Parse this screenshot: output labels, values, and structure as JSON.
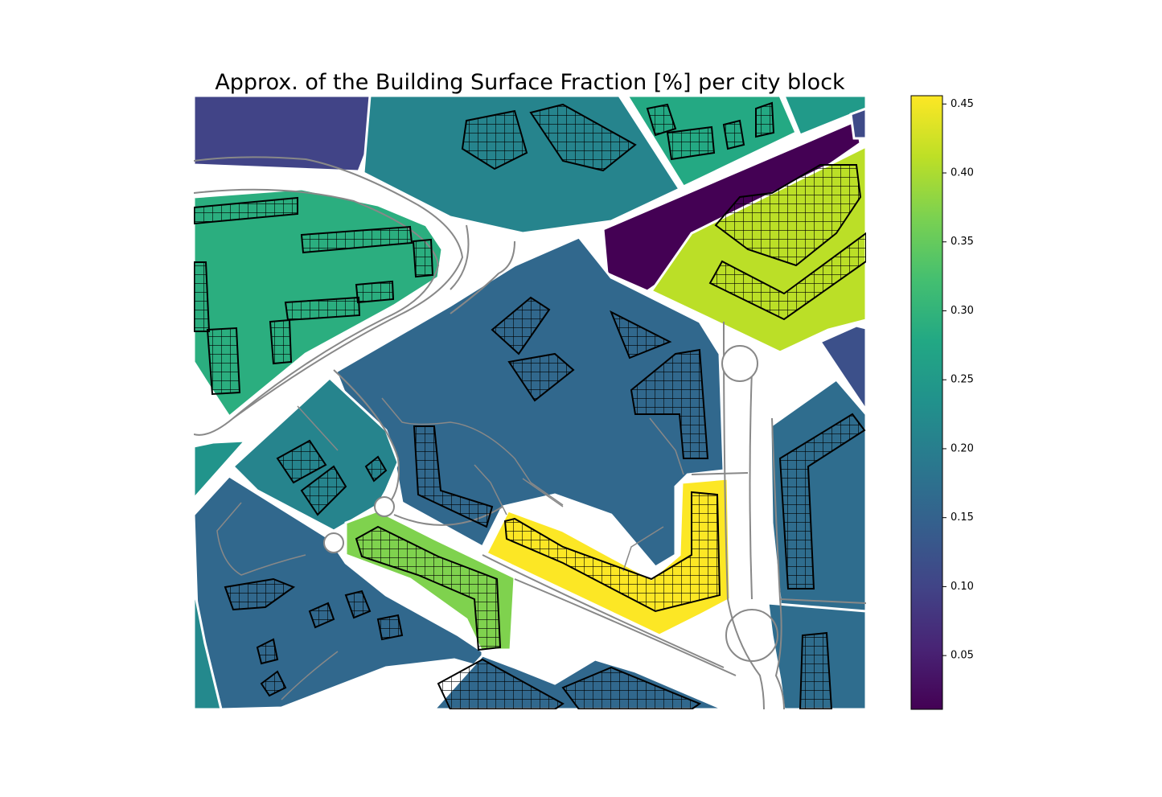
{
  "chart_data": {
    "type": "choropleth",
    "title": "Approx. of the Building Surface Fraction [%] per city block",
    "values": [
      0.1,
      0.21,
      0.28,
      0.25,
      0.01,
      0.11,
      0.41,
      0.29,
      0.16,
      0.21,
      0.24,
      0.16,
      0.22,
      0.37,
      0.455,
      0.17,
      0.12,
      0.17,
      0.16
    ],
    "colormap": "viridis",
    "clim": [
      0.011,
      0.456
    ],
    "ticks": [
      0.05,
      {
        "value": 0.1,
        "label": "0.10"
      },
      0.15,
      {
        "value": 0.2,
        "label": "0.20"
      },
      0.25,
      {
        "value": 0.3,
        "label": "0.30"
      },
      0.35,
      {
        "value": 0.4,
        "label": "0.40"
      },
      0.45
    ]
  }
}
